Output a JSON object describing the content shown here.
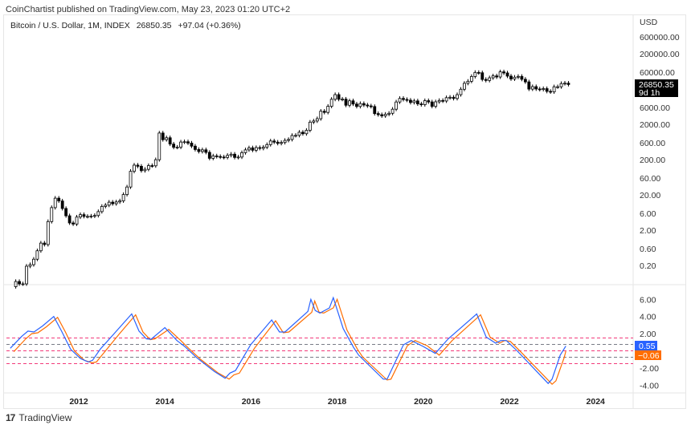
{
  "publisher_line": "CoinChartist published on TradingView.com, May 23, 2023 01:20 UTC+2",
  "legend": {
    "symbol": "Bitcoin / U.S. Dollar, 1M, INDEX",
    "last": "26850.35",
    "change": "+97.04 (+0.36%)"
  },
  "price_scale": {
    "currency": "USD",
    "labels": [
      "600000.00",
      "200000.00",
      "60000.00",
      "6000.00",
      "2000.00",
      "600.00",
      "200.00",
      "60.00",
      "20.00",
      "6.00",
      "2.00",
      "0.60",
      "0.20"
    ],
    "last_price_label": "26850.35",
    "countdown": "9d 1h"
  },
  "indicator_scale": {
    "labels": [
      "6.00",
      "4.00",
      "2.00",
      "-2.00",
      "-4.00"
    ],
    "blue_label": "0.55",
    "orange_label": "−0.06"
  },
  "time_axis": {
    "labels": [
      "2012",
      "2014",
      "2016",
      "2018",
      "2020",
      "2022",
      "2024"
    ]
  },
  "branding": {
    "text": "TradingView"
  },
  "colors": {
    "blue": "#2962ff",
    "orange": "#ff6d00",
    "pink_level": "#f23a7a",
    "gray_level": "#787b86",
    "candle": "#000000"
  },
  "chart_data": {
    "type": "candlestick",
    "scale": "log",
    "interval": "1M",
    "start": "2010-07",
    "first_open": 0.05,
    "closes": [
      0.07,
      0.06,
      0.06,
      0.19,
      0.21,
      0.3,
      0.52,
      0.86,
      0.78,
      3.5,
      8.7,
      16.1,
      13.4,
      8.2,
      5.1,
      3.2,
      2.97,
      4.7,
      5.5,
      4.9,
      4.9,
      5.0,
      5.2,
      6.7,
      9.4,
      10.2,
      12.4,
      11.2,
      12.6,
      13.5,
      20.4,
      33.4,
      93,
      139,
      129,
      97,
      106,
      135,
      133,
      198,
      1130,
      732,
      830,
      550,
      445,
      448,
      628,
      640,
      586,
      480,
      386,
      338,
      378,
      320,
      217,
      254,
      244,
      236,
      230,
      263,
      284,
      230,
      236,
      314,
      377,
      430,
      368,
      437,
      416,
      448,
      531,
      673,
      624,
      575,
      609,
      700,
      742,
      963,
      970,
      1190,
      1080,
      1350,
      2300,
      2480,
      2875,
      4700,
      4340,
      6470,
      10230,
      13860,
      10220,
      10330,
      6930,
      9240,
      7500,
      6400,
      7730,
      7030,
      6630,
      6370,
      4020,
      3740,
      3460,
      3850,
      4100,
      5350,
      8570,
      10820,
      10080,
      9630,
      8290,
      9200,
      7560,
      7200,
      9350,
      8600,
      6440,
      8660,
      9460,
      9140,
      11350,
      11680,
      10780,
      13800,
      19700,
      29000,
      33100,
      45200,
      58900,
      57700,
      37300,
      35000,
      41500,
      47100,
      43800,
      61300,
      57000,
      46300,
      38500,
      43200,
      45500,
      37700,
      31800,
      19900,
      23300,
      20050,
      19400,
      20500,
      17150,
      16550,
      23100,
      23150,
      28500,
      29250,
      26850.35
    ],
    "oscillator": {
      "levels": {
        "pink": [
          1.5,
          0,
          -1.5
        ],
        "gray": [
          0.75,
          -0.75
        ]
      },
      "blue": [
        [
          2010.41,
          0.3
        ],
        [
          2010.68,
          1.7
        ],
        [
          2010.82,
          2.3
        ],
        [
          2010.96,
          2.2
        ],
        [
          2011.16,
          2.9
        ],
        [
          2011.42,
          4.0
        ],
        [
          2011.6,
          2.3
        ],
        [
          2011.81,
          0.2
        ],
        [
          2012.04,
          -0.9
        ],
        [
          2012.22,
          -1.3
        ],
        [
          2012.32,
          -1.1
        ],
        [
          2012.5,
          0.2
        ],
        [
          2012.84,
          2.1
        ],
        [
          2013.23,
          4.3
        ],
        [
          2013.4,
          2.3
        ],
        [
          2013.57,
          1.4
        ],
        [
          2013.68,
          1.35
        ],
        [
          2014.0,
          2.7
        ],
        [
          2014.28,
          1.2
        ],
        [
          2014.46,
          0.5
        ],
        [
          2014.74,
          -0.8
        ],
        [
          2015.15,
          -2.4
        ],
        [
          2015.4,
          -3.2
        ],
        [
          2015.51,
          -2.6
        ],
        [
          2015.64,
          -2.3
        ],
        [
          2015.99,
          0.7
        ],
        [
          2016.48,
          3.6
        ],
        [
          2016.66,
          2.2
        ],
        [
          2016.79,
          2.2
        ],
        [
          2017.32,
          4.6
        ],
        [
          2017.39,
          6.0
        ],
        [
          2017.49,
          4.7
        ],
        [
          2017.6,
          4.4
        ],
        [
          2017.82,
          5.0
        ],
        [
          2017.91,
          6.2
        ],
        [
          2018.14,
          2.6
        ],
        [
          2018.38,
          0.4
        ],
        [
          2018.5,
          -0.5
        ],
        [
          2019.07,
          -3.3
        ],
        [
          2019.16,
          -3.3
        ],
        [
          2019.54,
          0.7
        ],
        [
          2019.72,
          1.2
        ],
        [
          2020.0,
          0.5
        ],
        [
          2020.28,
          -0.3
        ],
        [
          2020.58,
          1.4
        ],
        [
          2021.24,
          4.3
        ],
        [
          2021.46,
          1.6
        ],
        [
          2021.68,
          0.9
        ],
        [
          2021.8,
          1.2
        ],
        [
          2021.93,
          1.2
        ],
        [
          2022.17,
          0.05
        ],
        [
          2022.9,
          -3.8
        ],
        [
          2022.99,
          -3.3
        ],
        [
          2023.18,
          -0.5
        ],
        [
          2023.31,
          0.55
        ]
      ],
      "orange": [
        [
          2010.49,
          -0.1
        ],
        [
          2010.77,
          1.4
        ],
        [
          2010.91,
          2.0
        ],
        [
          2011.05,
          2.1
        ],
        [
          2011.25,
          2.8
        ],
        [
          2011.51,
          3.9
        ],
        [
          2011.69,
          2.2
        ],
        [
          2011.9,
          0.0
        ],
        [
          2012.13,
          -1.1
        ],
        [
          2012.31,
          -1.4
        ],
        [
          2012.41,
          -1.3
        ],
        [
          2012.59,
          -0.2
        ],
        [
          2012.93,
          1.9
        ],
        [
          2013.32,
          4.2
        ],
        [
          2013.49,
          2.2
        ],
        [
          2013.66,
          1.3
        ],
        [
          2013.77,
          1.4
        ],
        [
          2014.09,
          2.5
        ],
        [
          2014.37,
          1.2
        ],
        [
          2014.55,
          0.3
        ],
        [
          2014.83,
          -1.0
        ],
        [
          2015.24,
          -2.6
        ],
        [
          2015.49,
          -3.3
        ],
        [
          2015.6,
          -2.8
        ],
        [
          2015.73,
          -2.6
        ],
        [
          2016.08,
          0.3
        ],
        [
          2016.57,
          3.5
        ],
        [
          2016.75,
          2.1
        ],
        [
          2016.88,
          2.2
        ],
        [
          2017.41,
          4.5
        ],
        [
          2017.48,
          5.8
        ],
        [
          2017.58,
          4.5
        ],
        [
          2017.69,
          4.4
        ],
        [
          2017.91,
          5.0
        ],
        [
          2018.0,
          6.0
        ],
        [
          2018.23,
          2.4
        ],
        [
          2018.47,
          0.2
        ],
        [
          2018.59,
          -0.7
        ],
        [
          2019.16,
          -3.4
        ],
        [
          2019.25,
          -3.3
        ],
        [
          2019.63,
          0.6
        ],
        [
          2019.81,
          1.2
        ],
        [
          2020.09,
          0.6
        ],
        [
          2020.37,
          -0.5
        ],
        [
          2020.67,
          1.2
        ],
        [
          2021.33,
          4.2
        ],
        [
          2021.55,
          1.6
        ],
        [
          2021.77,
          0.9
        ],
        [
          2021.89,
          1.2
        ],
        [
          2022.02,
          1.1
        ],
        [
          2022.26,
          -0.1
        ],
        [
          2022.99,
          -3.9
        ],
        [
          2023.08,
          -3.5
        ],
        [
          2023.27,
          -0.8
        ],
        [
          2023.31,
          -0.06
        ]
      ]
    }
  }
}
